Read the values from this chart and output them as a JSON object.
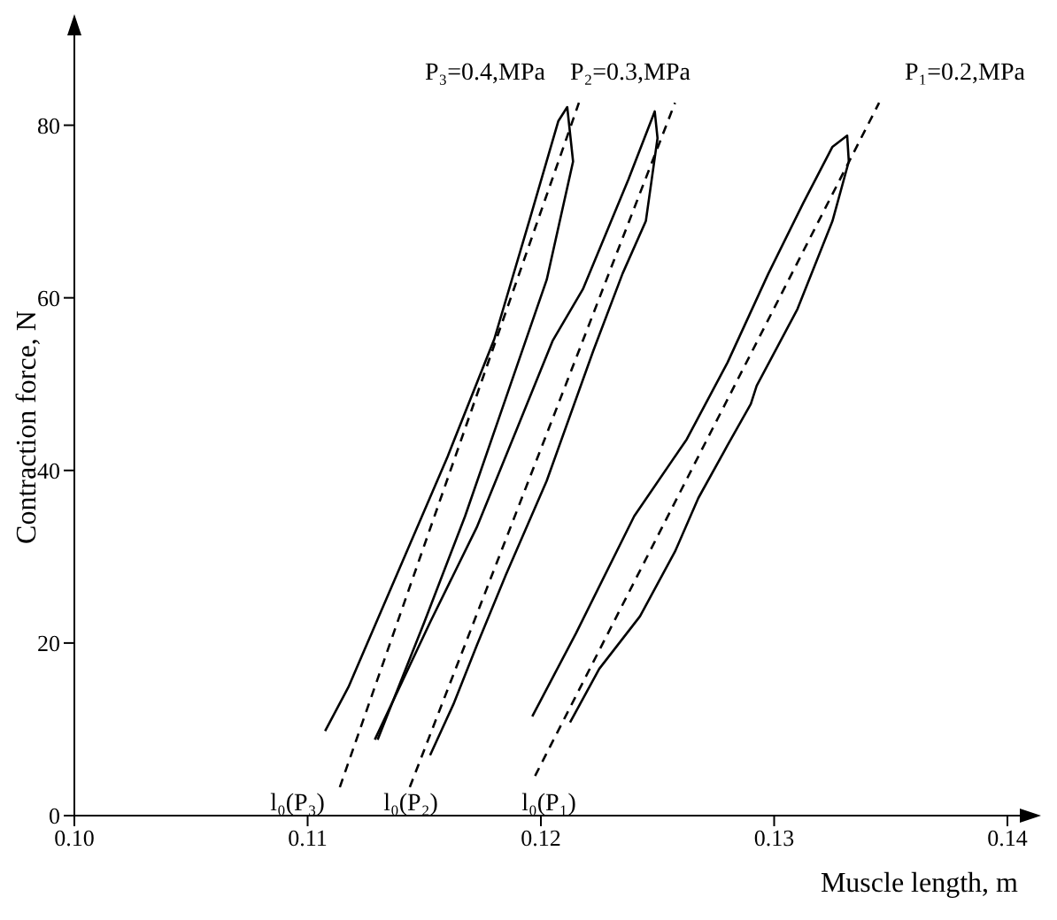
{
  "chart_data": {
    "type": "line",
    "xlabel": "Muscle length, m",
    "ylabel": "Contraction force, N",
    "xlim": [
      0.1,
      0.14
    ],
    "xticks": [
      {
        "value": 0.1,
        "label": "0.10"
      },
      0.11,
      0.12,
      0.13,
      {
        "value": 0.14,
        "label": "0.14"
      }
    ],
    "ylim": [
      0,
      90
    ],
    "yticks": [
      0,
      20,
      40,
      60,
      80
    ],
    "grid": false,
    "marker": "none",
    "line_style": "solid",
    "series": [
      {
        "color": "#000000",
        "x": [
          0.11075,
          0.11175,
          0.11425,
          0.116,
          0.118,
          0.1195,
          0.12075,
          0.12113,
          0.12138,
          0.12025,
          0.1185,
          0.11675,
          0.115,
          0.113
        ],
        "values": [
          9.8,
          14.9,
          30.6,
          41.6,
          55.2,
          68.9,
          80.5,
          82.1,
          75.8,
          62.1,
          48.4,
          34.7,
          22.4,
          8.8
        ]
      },
      {
        "color": "#000000",
        "line_style": "dashed",
        "x": [
          0.11138,
          0.12163
        ],
        "values": [
          3.3,
          82.6
        ]
      },
      {
        "color": "#000000",
        "x": [
          0.11288,
          0.11525,
          0.11725,
          0.119,
          0.1205,
          0.1218,
          0.12375,
          0.12488,
          0.125,
          0.1245,
          0.1235,
          0.12225,
          0.12025,
          0.1185,
          0.11725,
          0.11625,
          0.11525
        ],
        "values": [
          8.8,
          22.4,
          33.4,
          45,
          55,
          61,
          73.7,
          81.6,
          78.5,
          68.9,
          62.8,
          53.9,
          38.8,
          27.9,
          19.7,
          12.9,
          7
        ]
      },
      {
        "color": "#000000",
        "line_style": "dashed",
        "x": [
          0.11438,
          0.12575
        ],
        "values": [
          3.3,
          82.6
        ]
      },
      {
        "color": "#000000",
        "x": [
          0.11963,
          0.1215,
          0.124,
          0.12625,
          0.128,
          0.12975,
          0.13125,
          0.1325,
          0.13313,
          0.1332,
          0.1325,
          0.131,
          0.12925,
          0.129,
          0.128,
          0.12675,
          0.12575,
          0.12425,
          0.1225,
          0.12125
        ],
        "values": [
          11.5,
          21.1,
          34.7,
          43.6,
          52.5,
          62.8,
          71,
          77.5,
          78.8,
          75.8,
          68.9,
          58.7,
          49.8,
          47.7,
          42.9,
          36.8,
          30.6,
          23.1,
          17,
          10.8
        ]
      },
      {
        "color": "#000000",
        "line_style": "dashed",
        "x": [
          0.11975,
          0.1345
        ],
        "values": [
          4.6,
          82.6
        ]
      }
    ],
    "annotations": [
      "P₃=0.4,MPa",
      "P₂=0.3,MPa",
      "P₁=0.2,MPa",
      "l₀(P₃)",
      "l₀(P₂)",
      "l₀(P₁)"
    ]
  }
}
